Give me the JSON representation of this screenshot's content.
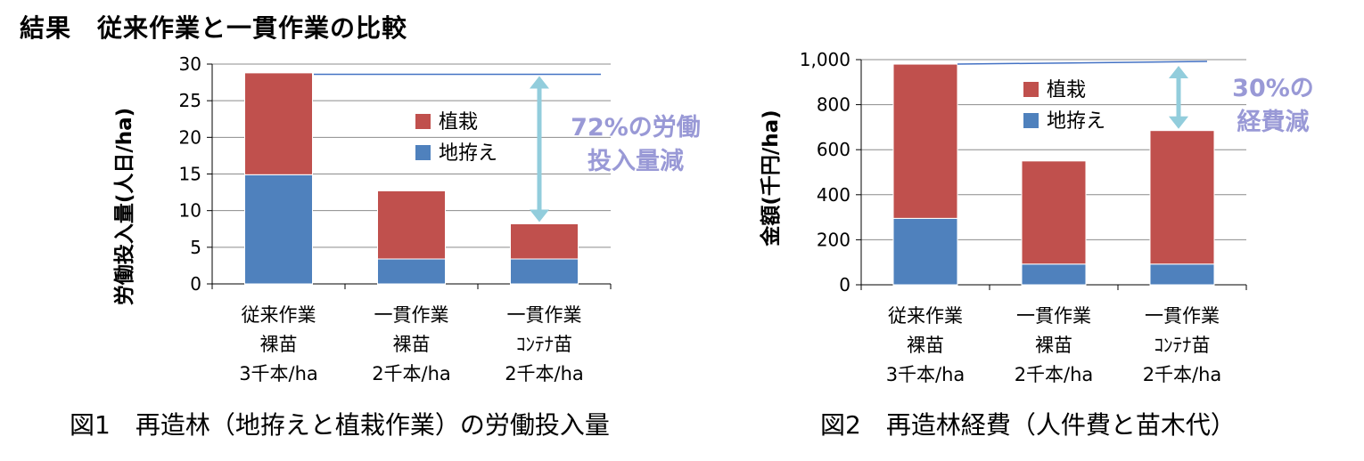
{
  "page_title": "結果　従来作業と一貫作業の比較",
  "chart_data": [
    {
      "type": "bar",
      "stacked": true,
      "ylabel": "労働投入量(人日/ha)",
      "ylim": [
        0,
        30
      ],
      "yticks": [
        "0",
        "5",
        "10",
        "15",
        "20",
        "25",
        "30"
      ],
      "grid": true,
      "legend_position": "center-right",
      "categories": [
        [
          "従来作業",
          "裸苗",
          "3千本/ha"
        ],
        [
          "一貫作業",
          "裸苗",
          "2千本/ha"
        ],
        [
          "一貫作業",
          "ｺﾝﾃﾅ苗",
          "2千本/ha"
        ]
      ],
      "series": [
        {
          "name": "地拵え",
          "color": "#4F81BD",
          "values": [
            14.9,
            3.4,
            3.4
          ]
        },
        {
          "name": "植栽",
          "color": "#C0504D",
          "values": [
            13.9,
            9.3,
            4.8
          ]
        }
      ],
      "annotation": [
        "72%の労働",
        "投入量減"
      ],
      "reference_value": 28.6,
      "caption": "図1　再造林（地拵えと植栽作業）の労働投入量"
    },
    {
      "type": "bar",
      "stacked": true,
      "ylabel": "金額(千円/ha)",
      "ylim": [
        0,
        1000
      ],
      "yticks": [
        "0",
        "200",
        "400",
        "600",
        "800",
        "1,000"
      ],
      "grid": true,
      "legend_position": "top-center",
      "categories": [
        [
          "従来作業",
          "裸苗",
          "3千本/ha"
        ],
        [
          "一貫作業",
          "裸苗",
          "2千本/ha"
        ],
        [
          "一貫作業",
          "ｺﾝﾃﾅ苗",
          "2千本/ha"
        ]
      ],
      "series": [
        {
          "name": "地拵え",
          "color": "#4F81BD",
          "values": [
            295,
            92,
            92
          ]
        },
        {
          "name": "植栽",
          "color": "#C0504D",
          "values": [
            685,
            458,
            593
          ]
        }
      ],
      "annotation": [
        "30%の",
        "経費減"
      ],
      "reference_value": 980,
      "caption": "図2　再造林経費（人件費と苗木代）"
    }
  ]
}
